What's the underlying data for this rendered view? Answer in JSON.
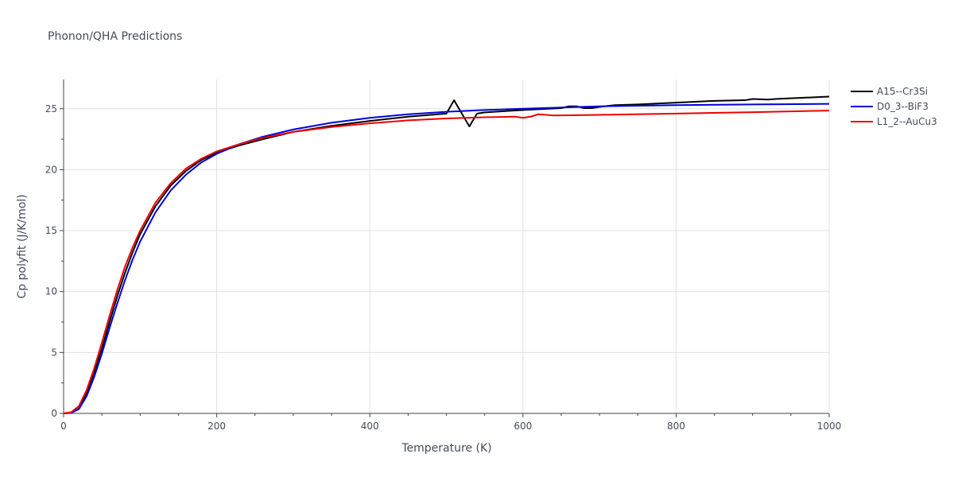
{
  "chart_data": {
    "type": "line",
    "title": "Phonon/QHA Predictions",
    "xlabel": "Temperature (K)",
    "ylabel": "Cp polyfit (J/K/mol)",
    "xlim": [
      0,
      1000
    ],
    "ylim": [
      0,
      27.4
    ],
    "xticks": [
      0,
      200,
      400,
      600,
      800,
      1000
    ],
    "yticks": [
      0,
      5,
      10,
      15,
      20,
      25
    ],
    "grid": true,
    "legend_position": "top-right",
    "series": [
      {
        "name": "A15--Cr3Si",
        "color": "#000000",
        "x": [
          0,
          10,
          20,
          30,
          40,
          50,
          60,
          70,
          80,
          90,
          100,
          120,
          140,
          160,
          180,
          200,
          230,
          260,
          300,
          350,
          400,
          450,
          500,
          510,
          530,
          540,
          550,
          600,
          650,
          660,
          670,
          680,
          690,
          700,
          720,
          750,
          800,
          850,
          890,
          900,
          920,
          930,
          1000
        ],
        "y": [
          0,
          0.05,
          0.4,
          1.6,
          3.3,
          5.3,
          7.5,
          9.6,
          11.5,
          13.2,
          14.7,
          17.0,
          18.7,
          19.9,
          20.8,
          21.4,
          22.0,
          22.5,
          23.1,
          23.6,
          24.0,
          24.35,
          24.6,
          25.7,
          23.55,
          24.6,
          24.7,
          24.9,
          25.05,
          25.2,
          25.2,
          25.05,
          25.05,
          25.15,
          25.3,
          25.35,
          25.5,
          25.65,
          25.7,
          25.8,
          25.75,
          25.8,
          26.0
        ]
      },
      {
        "name": "D0_3--BiF3",
        "color": "#0000dd",
        "x": [
          0,
          10,
          20,
          30,
          40,
          50,
          60,
          70,
          80,
          90,
          100,
          120,
          140,
          160,
          180,
          200,
          230,
          260,
          300,
          350,
          400,
          450,
          500,
          550,
          600,
          650,
          700,
          800,
          900,
          1000
        ],
        "y": [
          0,
          0.05,
          0.35,
          1.4,
          3.0,
          4.9,
          7.0,
          9.0,
          10.9,
          12.6,
          14.1,
          16.5,
          18.3,
          19.6,
          20.6,
          21.3,
          22.1,
          22.7,
          23.3,
          23.85,
          24.25,
          24.55,
          24.75,
          24.9,
          25.0,
          25.1,
          25.2,
          25.3,
          25.35,
          25.4
        ]
      },
      {
        "name": "L1_2--AuCu3",
        "color": "#ee0000",
        "x": [
          0,
          10,
          20,
          30,
          40,
          50,
          60,
          70,
          80,
          90,
          100,
          120,
          140,
          160,
          180,
          200,
          230,
          260,
          300,
          350,
          400,
          450,
          500,
          550,
          590,
          600,
          610,
          620,
          640,
          700,
          800,
          900,
          1000
        ],
        "y": [
          0,
          0.1,
          0.6,
          1.9,
          3.7,
          5.8,
          8.0,
          10.1,
          12.0,
          13.6,
          15.0,
          17.3,
          18.9,
          20.1,
          20.9,
          21.5,
          22.1,
          22.6,
          23.1,
          23.5,
          23.8,
          24.05,
          24.2,
          24.3,
          24.35,
          24.25,
          24.35,
          24.55,
          24.45,
          24.5,
          24.6,
          24.72,
          24.85
        ]
      }
    ]
  }
}
